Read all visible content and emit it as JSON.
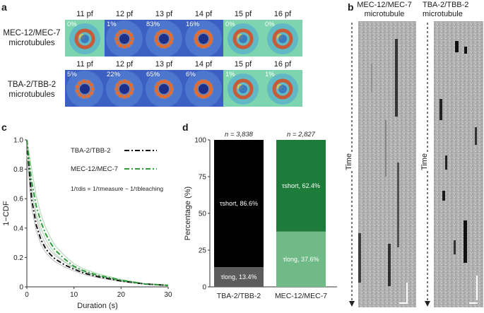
{
  "panels": {
    "a": "a",
    "b": "b",
    "c": "c",
    "d": "d"
  },
  "panel_a": {
    "row1_label": [
      "MEC-12/MEC-7",
      "microtubules"
    ],
    "row2_label": [
      "TBA-2/TBB-2",
      "microtubules"
    ],
    "row1": [
      {
        "pf": "11 pf",
        "pct": "0%",
        "style": "green",
        "ring": false
      },
      {
        "pf": "12 pf",
        "pct": "1%",
        "style": "blue",
        "ring": true
      },
      {
        "pf": "13 pf",
        "pct": "83%",
        "style": "blue",
        "ring": true
      },
      {
        "pf": "14 pf",
        "pct": "16%",
        "style": "blue",
        "ring": true
      },
      {
        "pf": "15 pf",
        "pct": "0%",
        "style": "green",
        "ring": false
      },
      {
        "pf": "16 pf",
        "pct": "0%",
        "style": "green",
        "ring": false
      }
    ],
    "row2": [
      {
        "pf": "11 pf",
        "pct": "5%",
        "style": "blue",
        "ring": true
      },
      {
        "pf": "12 pf",
        "pct": "22%",
        "style": "blue",
        "ring": true
      },
      {
        "pf": "13 pf",
        "pct": "65%",
        "style": "blue",
        "ring": true
      },
      {
        "pf": "14 pf",
        "pct": "6%",
        "style": "blue",
        "ring": true
      },
      {
        "pf": "15 pf",
        "pct": "1%",
        "style": "green",
        "ring": false
      },
      {
        "pf": "16 pf",
        "pct": "1%",
        "style": "green",
        "ring": false
      }
    ]
  },
  "panel_b": {
    "left_title": [
      "MEC-12/MEC-7",
      "microtubule"
    ],
    "right_title": [
      "TBA-2/TBB-2",
      "microtubule"
    ],
    "time_label": "Time"
  },
  "chart_data": [
    {
      "type": "line",
      "panel": "c",
      "xlabel": "Duration (s)",
      "ylabel": "1−CDF",
      "xlim": [
        0,
        30
      ],
      "ylim": [
        0,
        1.0
      ],
      "xticks": [
        "0",
        "10",
        "20",
        "30"
      ],
      "yticks": [
        "0",
        "0.2",
        "0.4",
        "0.6",
        "0.8",
        "1.0"
      ],
      "legend": [
        "TBA-2/TBB-2",
        "MEC-12/MEC-7"
      ],
      "formula": "1/τdis = 1/τmeasure − 1/τbleaching",
      "series": [
        {
          "name": "TBA-2/TBB-2",
          "color": "#111111",
          "x": [
            0,
            1,
            2,
            3,
            4,
            5,
            6,
            8,
            10,
            12,
            15,
            20,
            25,
            30
          ],
          "y": [
            1.0,
            0.6,
            0.42,
            0.32,
            0.26,
            0.22,
            0.19,
            0.15,
            0.12,
            0.095,
            0.07,
            0.04,
            0.02,
            0.01
          ]
        },
        {
          "name": "MEC-12/MEC-7",
          "color": "#2e9a3a",
          "x": [
            0,
            1,
            2,
            3,
            4,
            5,
            6,
            8,
            10,
            12,
            15,
            20,
            25,
            30
          ],
          "y": [
            1.0,
            0.72,
            0.55,
            0.44,
            0.36,
            0.3,
            0.25,
            0.19,
            0.14,
            0.11,
            0.08,
            0.045,
            0.02,
            0.01
          ]
        }
      ]
    },
    {
      "type": "bar",
      "panel": "d",
      "ylabel": "Percentage (%)",
      "ylim": [
        0,
        100
      ],
      "yticks": [
        "0",
        "25",
        "50",
        "75",
        "100"
      ],
      "categories": [
        "TBA-2/TBB-2",
        "MEC-12/MEC-7"
      ],
      "n_labels": [
        "n = 3,838",
        "n = 2,827"
      ],
      "series": [
        {
          "name": "τlong",
          "values": [
            13.4,
            37.6
          ],
          "colors": [
            "#5c5c5c",
            "#6fba86"
          ],
          "labels": [
            "τlong, 13.4%",
            "τlong, 37.6%"
          ]
        },
        {
          "name": "τshort",
          "values": [
            86.6,
            62.4
          ],
          "colors": [
            "#000000",
            "#1e7c3a"
          ],
          "labels": [
            "τshort, 86.6%",
            "τshort, 62.4%"
          ]
        }
      ]
    }
  ]
}
